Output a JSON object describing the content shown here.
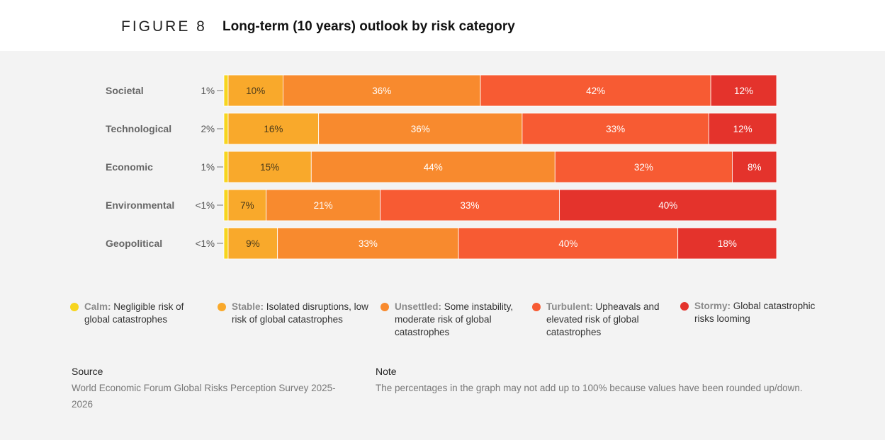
{
  "header": {
    "figure_label": "FIGURE 8",
    "title": "Long-term (10 years) outlook by risk category"
  },
  "colors": {
    "calm": "#f7d51e",
    "stable": "#f9a92b",
    "unsettled": "#f88a2e",
    "turbulent": "#f75b33",
    "stormy": "#e4332c"
  },
  "chart_data": {
    "type": "bar",
    "orientation": "horizontal",
    "stacked": true,
    "categories": [
      "Societal",
      "Technological",
      "Economic",
      "Environmental",
      "Geopolitical"
    ],
    "series": [
      {
        "name": "Calm",
        "values": [
          1,
          2,
          1,
          0.5,
          0.5
        ],
        "labels": [
          "1%",
          "2%",
          "1%",
          "<1%",
          "<1%"
        ]
      },
      {
        "name": "Stable",
        "values": [
          10,
          16,
          15,
          7,
          9
        ],
        "labels": [
          "10%",
          "16%",
          "15%",
          "7%",
          "9%"
        ]
      },
      {
        "name": "Unsettled",
        "values": [
          36,
          36,
          44,
          21,
          33
        ],
        "labels": [
          "36%",
          "36%",
          "44%",
          "21%",
          "33%"
        ]
      },
      {
        "name": "Turbulent",
        "values": [
          42,
          33,
          32,
          33,
          40
        ],
        "labels": [
          "42%",
          "33%",
          "32%",
          "33%",
          "40%"
        ]
      },
      {
        "name": "Stormy",
        "values": [
          12,
          12,
          8,
          40,
          18
        ],
        "labels": [
          "12%",
          "12%",
          "8%",
          "40%",
          "18%"
        ]
      }
    ]
  },
  "legend": [
    {
      "key": "calm",
      "name": "Calm:",
      "description": "Negligible risk of global catastrophes"
    },
    {
      "key": "stable",
      "name": "Stable:",
      "description": "Isolated disruptions, low risk of global catastrophes"
    },
    {
      "key": "unsettled",
      "name": "Unsettled:",
      "description": "Some instability, moderate risk of global catastrophes"
    },
    {
      "key": "turbulent",
      "name": "Turbulent:",
      "description": "Upheavals and elevated risk of global catastrophes"
    },
    {
      "key": "stormy",
      "name": "Stormy:",
      "description": "Global catastrophic risks looming"
    }
  ],
  "footer": {
    "source_heading": "Source",
    "source_text": "World Economic Forum Global Risks Perception Survey 2025-2026",
    "note_heading": "Note",
    "note_text": "The percentages in the graph may not add up to 100% because values have been rounded up/down."
  }
}
